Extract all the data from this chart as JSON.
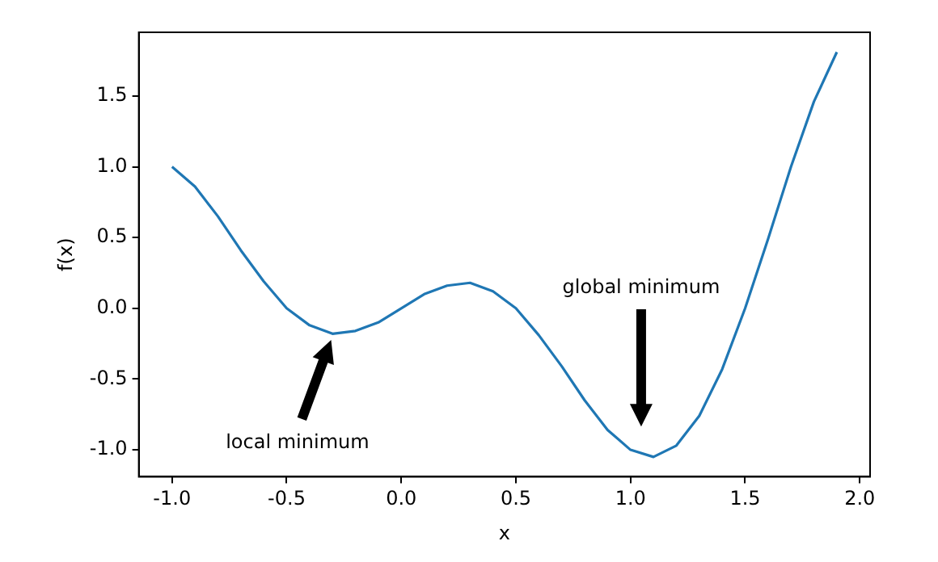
{
  "chart_data": {
    "type": "line",
    "xlabel": "x",
    "ylabel": "f(x)",
    "x": [
      -1.0,
      -0.9,
      -0.8,
      -0.7,
      -0.6,
      -0.5,
      -0.4,
      -0.3,
      -0.2,
      -0.1,
      0.0,
      0.1,
      0.2,
      0.3,
      0.4,
      0.5,
      0.6,
      0.7,
      0.8,
      0.9,
      1.0,
      1.1,
      1.2,
      1.3,
      1.4,
      1.5,
      1.6,
      1.7,
      1.8,
      1.9
    ],
    "series": [
      {
        "color": "#1f77b4",
        "values": [
          1.0,
          0.86,
          0.65,
          0.41,
          0.19,
          0.0,
          -0.12,
          -0.18,
          -0.16,
          -0.1,
          0.0,
          0.1,
          0.16,
          0.18,
          0.12,
          0.0,
          -0.19,
          -0.41,
          -0.65,
          -0.86,
          -1.0,
          -1.05,
          -0.97,
          -0.76,
          -0.43,
          0.0,
          0.49,
          1.0,
          1.46,
          1.81
        ]
      }
    ],
    "xlim": [
      -1.145,
      2.045
    ],
    "ylim": [
      -1.19,
      1.95
    ],
    "xticks": [
      {
        "value": -1.0,
        "label": "-1.0"
      },
      {
        "value": -0.5,
        "label": "-0.5"
      },
      {
        "value": 0.0,
        "label": "0.0"
      },
      {
        "value": 0.5,
        "label": "0.5"
      },
      {
        "value": 1.0,
        "label": "1.0"
      },
      {
        "value": 1.5,
        "label": "1.5"
      },
      {
        "value": 2.0,
        "label": "2.0"
      }
    ],
    "yticks": [
      {
        "value": -1.0,
        "label": "-1.0"
      },
      {
        "value": -0.5,
        "label": "-0.5"
      },
      {
        "value": 0.0,
        "label": "0.0"
      },
      {
        "value": 0.5,
        "label": "0.5"
      },
      {
        "value": 1.0,
        "label": "1.0"
      },
      {
        "value": 1.5,
        "label": "1.5"
      }
    ],
    "annotations": [
      "local minimum",
      "global minimum"
    ],
    "grid": false,
    "legend": false,
    "marker": "none",
    "line_style": "solid"
  }
}
